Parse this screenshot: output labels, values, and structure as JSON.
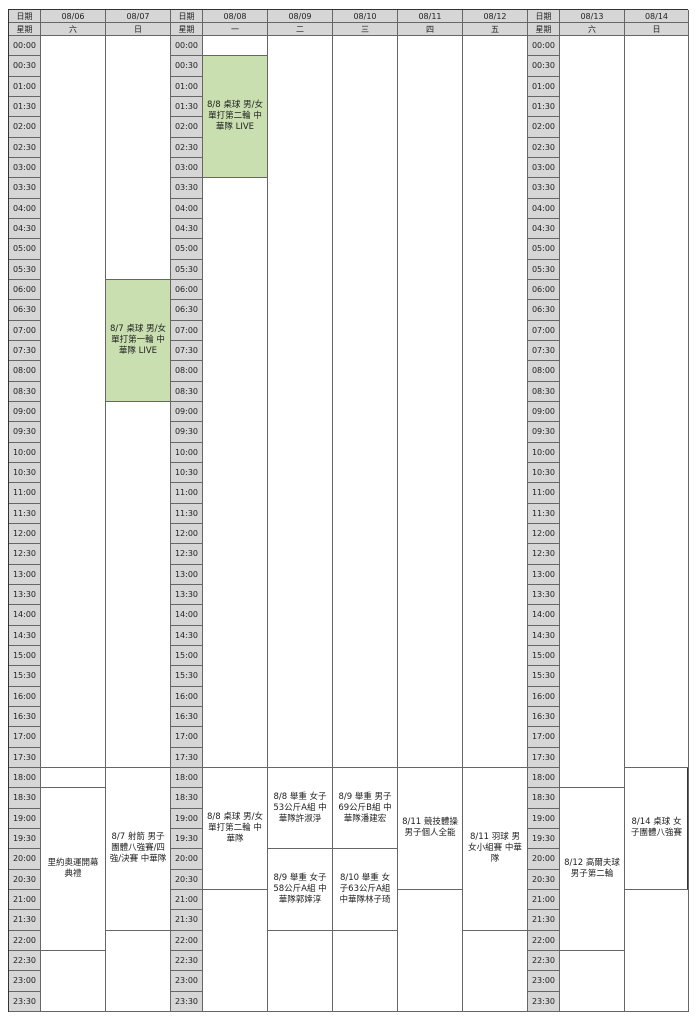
{
  "header": {
    "row1_label": "日期",
    "row2_label": "星期",
    "days": [
      {
        "date": "08/06",
        "weekday": "六"
      },
      {
        "date": "08/07",
        "weekday": "日"
      },
      {
        "date": "08/08",
        "weekday": "一"
      },
      {
        "date": "08/09",
        "weekday": "二"
      },
      {
        "date": "08/10",
        "weekday": "三"
      },
      {
        "date": "08/11",
        "weekday": "四"
      },
      {
        "date": "08/12",
        "weekday": "五"
      },
      {
        "date": "08/13",
        "weekday": "六"
      },
      {
        "date": "08/14",
        "weekday": "日"
      }
    ]
  },
  "times": [
    "00:00",
    "00:30",
    "01:00",
    "01:30",
    "02:00",
    "02:30",
    "03:00",
    "03:30",
    "04:00",
    "04:30",
    "05:00",
    "05:30",
    "06:00",
    "06:30",
    "07:00",
    "07:30",
    "08:00",
    "08:30",
    "09:00",
    "09:30",
    "10:00",
    "10:30",
    "11:00",
    "11:30",
    "12:00",
    "12:30",
    "13:00",
    "13:30",
    "14:00",
    "14:30",
    "15:00",
    "15:30",
    "16:00",
    "16:30",
    "17:00",
    "17:30",
    "18:00",
    "18:30",
    "19:00",
    "19:30",
    "20:00",
    "20:30",
    "21:00",
    "21:30",
    "22:00",
    "22:30",
    "23:00",
    "23:30"
  ],
  "events": {
    "d0": [
      {
        "start": 0,
        "span": 36,
        "text": ""
      },
      {
        "start": 36,
        "span": 1,
        "text": ""
      },
      {
        "start": 37,
        "span": 8,
        "text": "里約奧運開幕典禮"
      },
      {
        "start": 45,
        "span": 3,
        "text": ""
      }
    ],
    "d1": [
      {
        "start": 0,
        "span": 12,
        "text": ""
      },
      {
        "start": 12,
        "span": 6,
        "text": "8/7 桌球 男/女單打第一輪 中華隊 LIVE",
        "live": true
      },
      {
        "start": 18,
        "span": 18,
        "text": ""
      },
      {
        "start": 36,
        "span": 8,
        "text": "8/7 射箭 男子團體八強賽/四強/決賽 中華隊"
      },
      {
        "start": 44,
        "span": 4,
        "text": ""
      }
    ],
    "d2": [
      {
        "start": 0,
        "span": 1,
        "text": ""
      },
      {
        "start": 1,
        "span": 6,
        "text": "8/8 桌球 男/女單打第二輪 中華隊 LIVE",
        "live": true
      },
      {
        "start": 7,
        "span": 29,
        "text": ""
      },
      {
        "start": 36,
        "span": 6,
        "text": "8/8 桌球 男/女單打第二輪 中華隊"
      },
      {
        "start": 42,
        "span": 6,
        "text": ""
      }
    ],
    "d3": [
      {
        "start": 0,
        "span": 36,
        "text": ""
      },
      {
        "start": 36,
        "span": 4,
        "text": "8/8 舉重 女子53公斤A組 中華隊許淑淨"
      },
      {
        "start": 40,
        "span": 4,
        "text": "8/9 舉重 女子58公斤A組 中華隊郭婞淳"
      },
      {
        "start": 44,
        "span": 4,
        "text": ""
      }
    ],
    "d4": [
      {
        "start": 0,
        "span": 36,
        "text": ""
      },
      {
        "start": 36,
        "span": 4,
        "text": "8/9 舉重 男子69公斤B組 中華隊潘建宏"
      },
      {
        "start": 40,
        "span": 4,
        "text": "8/10 舉重 女子63公斤A組 中華隊林子琦"
      },
      {
        "start": 44,
        "span": 4,
        "text": ""
      }
    ],
    "d5": [
      {
        "start": 0,
        "span": 36,
        "text": ""
      },
      {
        "start": 36,
        "span": 6,
        "text": "8/11 競技體操 男子個人全能"
      },
      {
        "start": 42,
        "span": 6,
        "text": ""
      }
    ],
    "d6": [
      {
        "start": 0,
        "span": 36,
        "text": ""
      },
      {
        "start": 36,
        "span": 8,
        "text": "8/11 羽球 男女小組賽 中華隊"
      },
      {
        "start": 44,
        "span": 4,
        "text": ""
      }
    ],
    "d7": [
      {
        "start": 0,
        "span": 37,
        "text": ""
      },
      {
        "start": 37,
        "span": 8,
        "text": "8/12 高爾夫球 男子第二輪"
      },
      {
        "start": 45,
        "span": 3,
        "text": ""
      }
    ],
    "d8": [
      {
        "start": 0,
        "span": 36,
        "text": ""
      },
      {
        "start": 36,
        "span": 6,
        "text": "8/14 桌球 女子團體八強賽"
      },
      {
        "start": 42,
        "span": 6,
        "text": ""
      }
    ]
  },
  "colors": {
    "header_bg": "#d6d6d6",
    "live_bg": "#c9dfb0",
    "border": "#666666"
  }
}
